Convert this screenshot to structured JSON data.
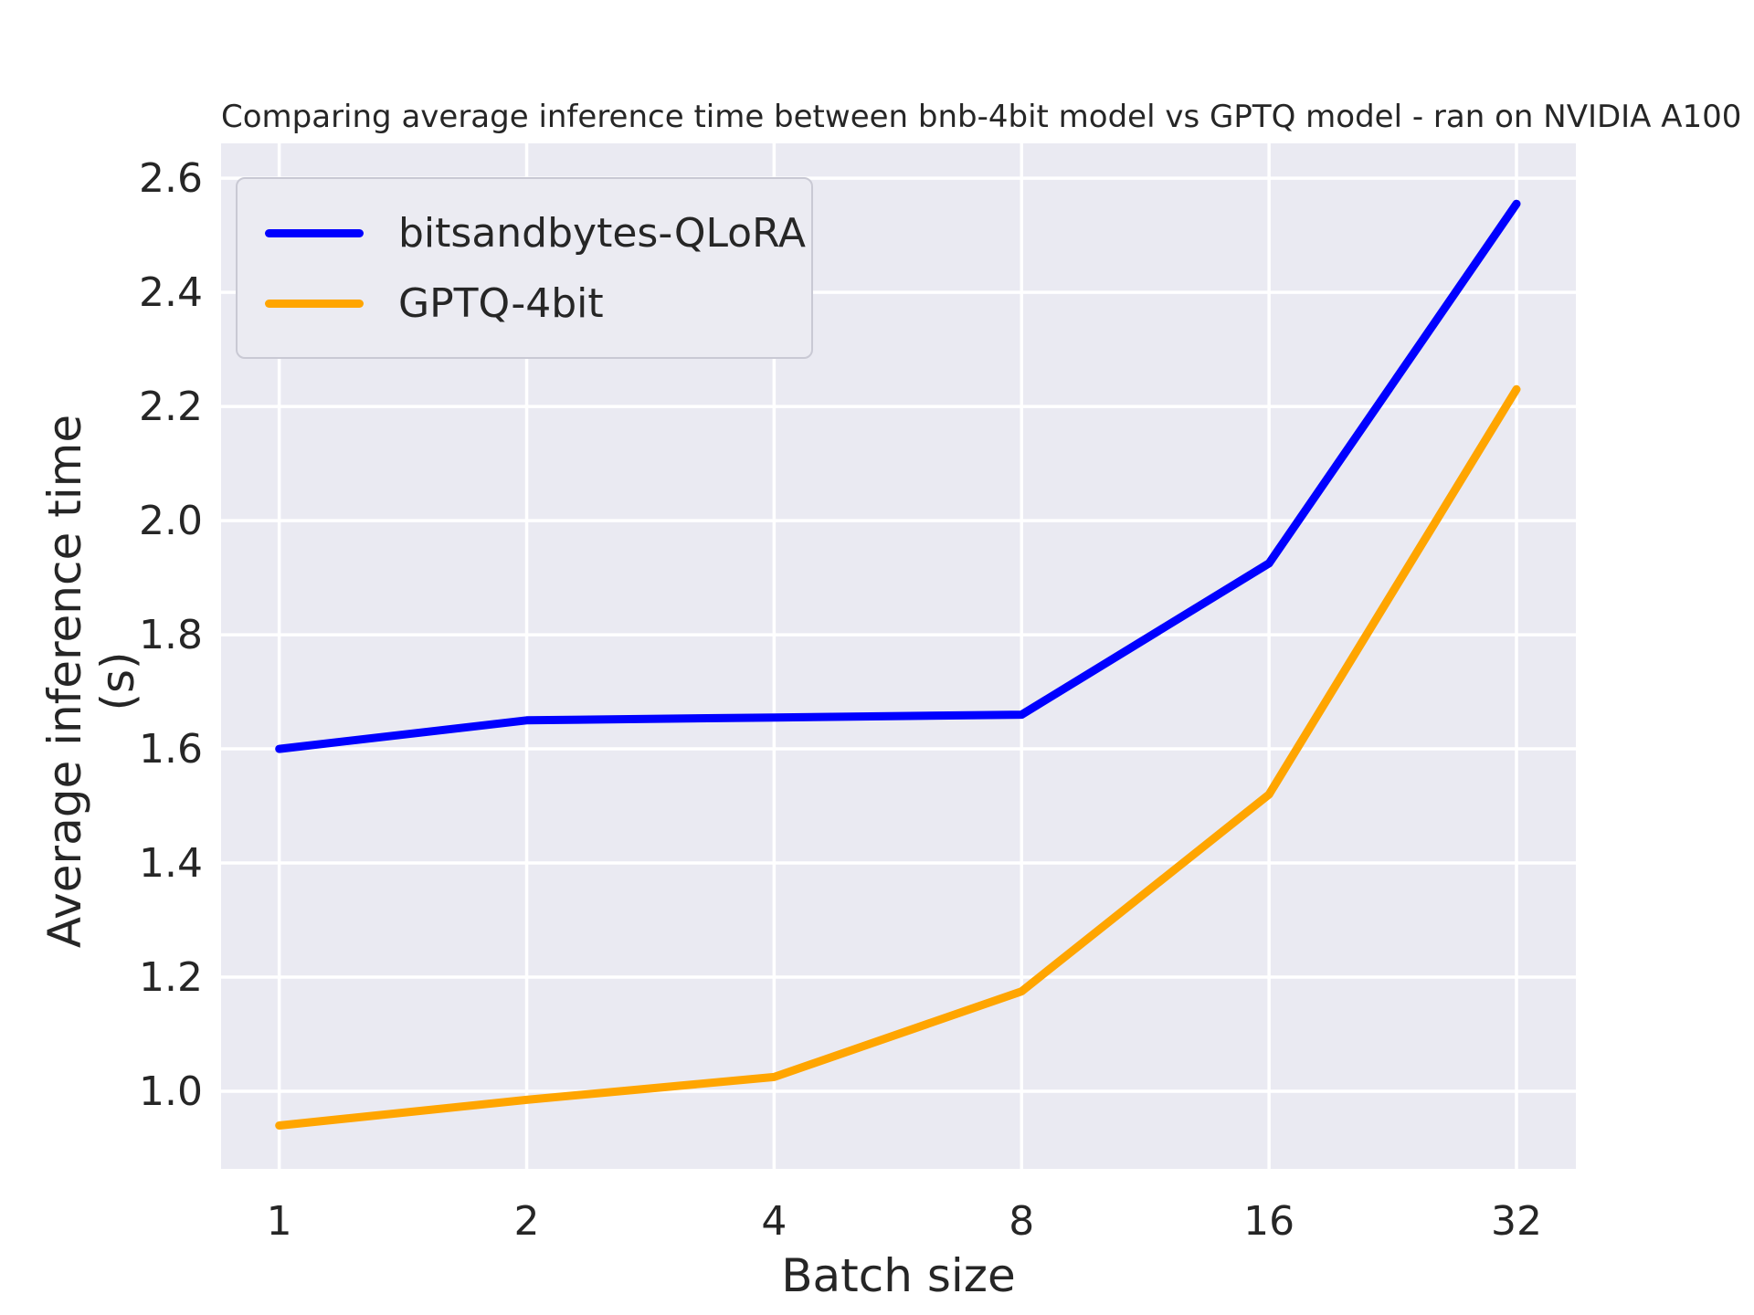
{
  "figure": {
    "title": "Comparing average inference time between bnb-4bit model vs GPTQ model - ran on NVIDIA A100"
  },
  "chart_data": {
    "type": "line",
    "title": "Comparing average inference time between bnb-4bit model vs GPTQ model - ran on NVIDIA A100",
    "xlabel": "Batch size",
    "ylabel": "Average inference time (s)",
    "x": [
      1,
      2,
      4,
      8,
      16,
      32
    ],
    "x_scale": "log2",
    "x_tick_labels": [
      "1",
      "2",
      "4",
      "8",
      "16",
      "32"
    ],
    "series": [
      {
        "name": "bitsandbytes-QLoRA",
        "color": "#0000ff",
        "values": [
          1.6,
          1.65,
          1.655,
          1.66,
          1.925,
          2.555
        ]
      },
      {
        "name": "GPTQ-4bit",
        "color": "#ffa500",
        "values": [
          0.94,
          0.985,
          1.025,
          1.175,
          1.52,
          2.23
        ]
      }
    ],
    "y_ticks": [
      1.0,
      1.2,
      1.4,
      1.6,
      1.8,
      2.0,
      2.2,
      2.4,
      2.6
    ],
    "y_tick_labels": [
      "1.0",
      "1.2",
      "1.4",
      "1.6",
      "1.8",
      "2.0",
      "2.2",
      "2.4",
      "2.6"
    ],
    "ylim": [
      0.864,
      2.661
    ],
    "xlim_log2": [
      -0.235,
      5.24
    ],
    "grid": true,
    "legend_position": "upper left",
    "plot_bg": "#eaeaf2",
    "grid_color": "#ffffff",
    "text_color": "#262626"
  }
}
